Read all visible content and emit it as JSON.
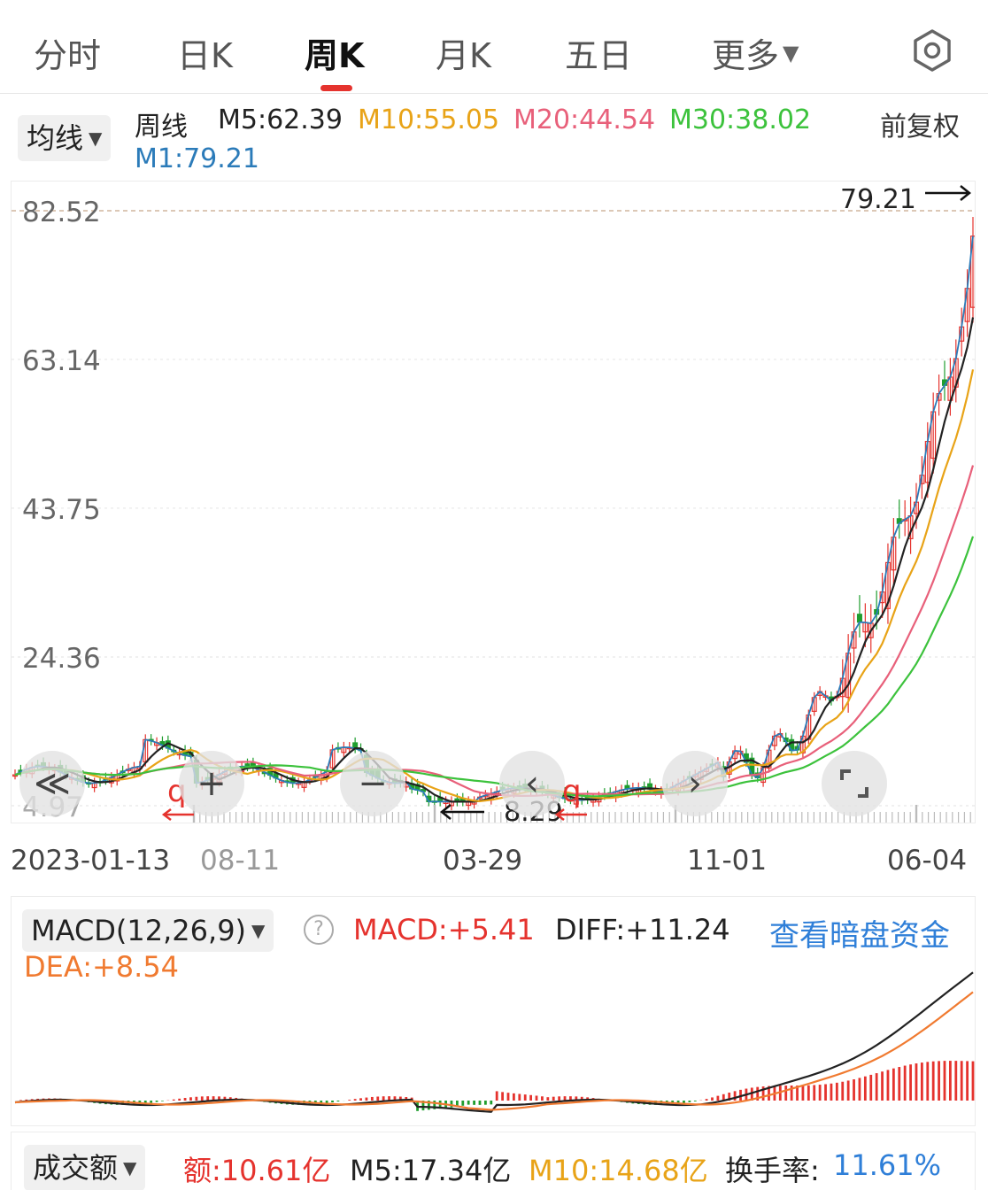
{
  "tabs": [
    {
      "label": "分时",
      "active": false
    },
    {
      "label": "日K",
      "active": false
    },
    {
      "label": "周K",
      "active": true
    },
    {
      "label": "月K",
      "active": false
    },
    {
      "label": "五日",
      "active": false
    },
    {
      "label": "更多",
      "active": false
    }
  ],
  "ma_bar": {
    "selector": "均线",
    "period": "周线",
    "m5": "M5:62.39",
    "m10": "M10:55.05",
    "m20": "M20:44.54",
    "m30": "M30:38.02",
    "m1": "M1:79.21",
    "adjust": "前复权"
  },
  "main_chart": {
    "y_ticks": [
      "82.52",
      "63.14",
      "43.75",
      "24.36",
      "4.97"
    ],
    "y_tick_values": [
      82.52,
      63.14,
      43.75,
      24.36,
      4.97
    ],
    "high_marker": "79.21",
    "low_marker": "8.29",
    "left_arrow_left": "q",
    "left_arrow_right": "q",
    "x_labels": [
      "2023-01-13",
      "08-11",
      "03-29",
      "11-01",
      "06-04"
    ]
  },
  "macd": {
    "selector": "MACD(12,26,9)",
    "help_icon": "?",
    "macd": "MACD:+5.41",
    "diff": "DIFF:+11.24",
    "link": "查看暗盘资金",
    "dea": "DEA:+8.54"
  },
  "volume": {
    "selector": "成交额",
    "amount": "额:10.61亿",
    "m5": "M5:17.34亿",
    "m10": "M10:14.68亿",
    "turnover_label": "换手率:",
    "turnover_value": "11.61%"
  },
  "controls": {
    "back": "≪",
    "zoom_in": "+",
    "zoom_out": "−",
    "prev": "‹",
    "next": "›"
  },
  "colors": {
    "up": "#e5332e",
    "down": "#1f9d2e",
    "m5": "#222222",
    "m10": "#e8a317",
    "m20": "#e8607a",
    "m30": "#3cc23c",
    "m1": "#2b7bb9",
    "link": "#2f7fd8",
    "dea": "#f07a30"
  }
}
